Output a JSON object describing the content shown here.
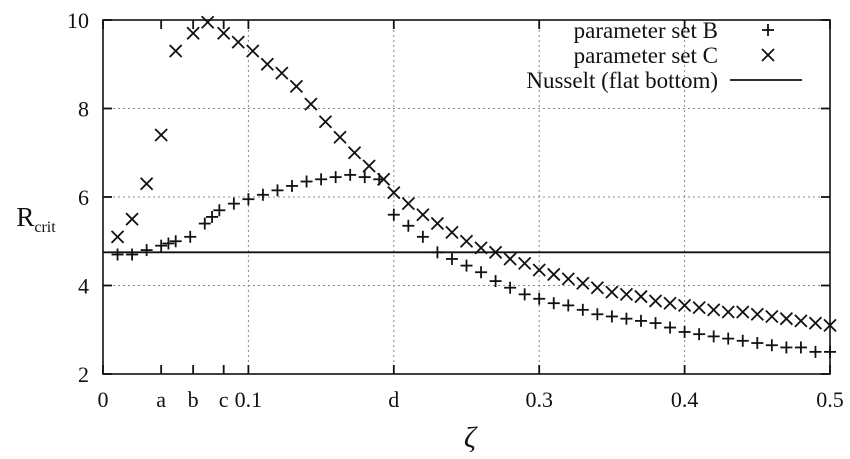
{
  "chart_data": {
    "type": "scatter",
    "ylabel_main": "R",
    "ylabel_sub": "crit",
    "xlabel": "ζ",
    "xlim": [
      0,
      0.5
    ],
    "ylim": [
      2,
      10
    ],
    "x_ticks": [
      {
        "value": 0,
        "label": "0"
      },
      {
        "value": 0.04,
        "label": "a"
      },
      {
        "value": 0.062,
        "label": "b"
      },
      {
        "value": 0.083,
        "label": "c"
      },
      {
        "value": 0.1,
        "label": "0.1"
      },
      {
        "value": 0.2,
        "label": "d"
      },
      {
        "value": 0.3,
        "label": "0.3"
      },
      {
        "value": 0.4,
        "label": "0.4"
      },
      {
        "value": 0.5,
        "label": "0.5"
      }
    ],
    "y_ticks": [
      2,
      4,
      6,
      8,
      10
    ],
    "x_grid": [
      0.1,
      0.2,
      0.3,
      0.4
    ],
    "y_grid": [
      4,
      6,
      8
    ],
    "legend_position": "top-right",
    "series": [
      {
        "name": "parameter set B",
        "marker": "plus",
        "x": [
          0.01,
          0.02,
          0.03,
          0.04,
          0.045,
          0.05,
          0.06,
          0.07,
          0.075,
          0.08,
          0.09,
          0.1,
          0.11,
          0.12,
          0.13,
          0.14,
          0.15,
          0.16,
          0.17,
          0.18,
          0.19,
          0.2,
          0.21,
          0.22,
          0.23,
          0.24,
          0.25,
          0.26,
          0.27,
          0.28,
          0.29,
          0.3,
          0.31,
          0.32,
          0.33,
          0.34,
          0.35,
          0.36,
          0.37,
          0.38,
          0.39,
          0.4,
          0.41,
          0.42,
          0.43,
          0.44,
          0.45,
          0.46,
          0.47,
          0.48,
          0.49,
          0.5
        ],
        "y": [
          4.7,
          4.7,
          4.8,
          4.9,
          4.95,
          5.0,
          5.1,
          5.4,
          5.55,
          5.7,
          5.85,
          5.95,
          6.05,
          6.15,
          6.25,
          6.35,
          6.4,
          6.45,
          6.5,
          6.45,
          6.4,
          5.6,
          5.35,
          5.1,
          4.75,
          4.6,
          4.45,
          4.3,
          4.1,
          3.95,
          3.8,
          3.7,
          3.6,
          3.55,
          3.45,
          3.35,
          3.3,
          3.25,
          3.2,
          3.15,
          3.05,
          2.95,
          2.9,
          2.85,
          2.8,
          2.75,
          2.7,
          2.65,
          2.6,
          2.6,
          2.5,
          2.5
        ]
      },
      {
        "name": "parameter set C",
        "marker": "cross",
        "x": [
          0.01,
          0.02,
          0.03,
          0.04,
          0.05,
          0.062,
          0.072,
          0.083,
          0.093,
          0.103,
          0.113,
          0.123,
          0.133,
          0.143,
          0.153,
          0.163,
          0.173,
          0.183,
          0.193,
          0.2,
          0.21,
          0.22,
          0.23,
          0.24,
          0.25,
          0.26,
          0.27,
          0.28,
          0.29,
          0.3,
          0.31,
          0.32,
          0.33,
          0.34,
          0.35,
          0.36,
          0.37,
          0.38,
          0.39,
          0.4,
          0.41,
          0.42,
          0.43,
          0.44,
          0.45,
          0.46,
          0.47,
          0.48,
          0.49,
          0.5
        ],
        "y": [
          5.1,
          5.5,
          6.3,
          7.4,
          9.3,
          9.7,
          9.95,
          9.7,
          9.5,
          9.3,
          9.0,
          8.8,
          8.5,
          8.1,
          7.7,
          7.35,
          7.0,
          6.7,
          6.4,
          6.1,
          5.85,
          5.6,
          5.4,
          5.2,
          5.0,
          4.85,
          4.75,
          4.6,
          4.5,
          4.35,
          4.25,
          4.15,
          4.05,
          3.95,
          3.85,
          3.8,
          3.75,
          3.65,
          3.6,
          3.55,
          3.5,
          3.45,
          3.4,
          3.4,
          3.35,
          3.3,
          3.25,
          3.2,
          3.15,
          3.1
        ]
      },
      {
        "name": "Nusselt (flat bottom)",
        "marker": "line",
        "y_constant": 4.75
      }
    ]
  }
}
